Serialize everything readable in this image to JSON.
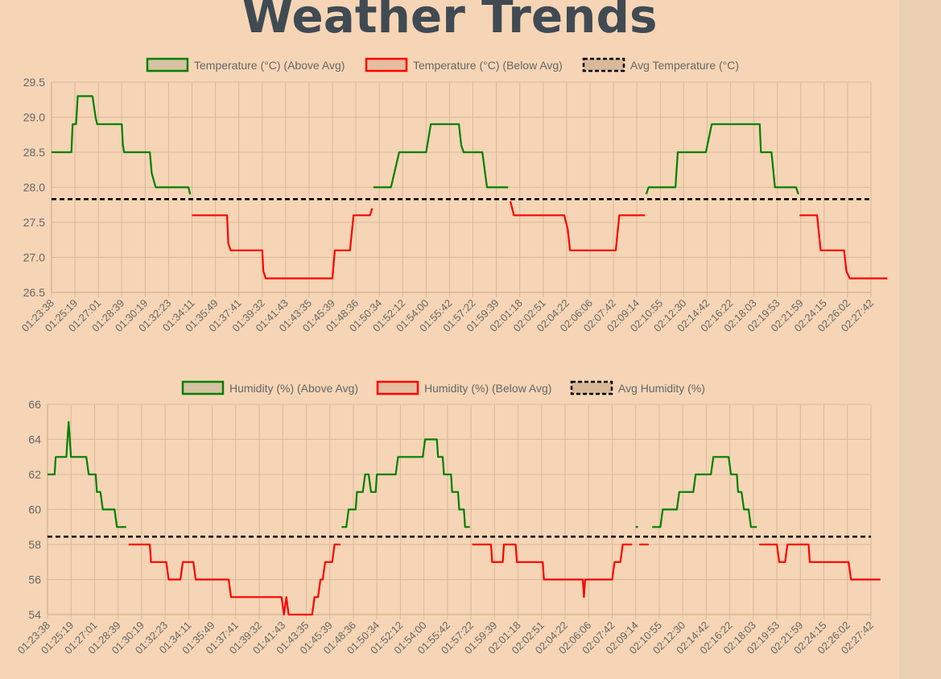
{
  "page": {
    "title": "Weather Trends"
  },
  "colors": {
    "above": "#008000",
    "below": "#ff0000",
    "avg": "#000000",
    "grid": "#d9b99a",
    "text": "#666666",
    "background": "#f5d5b5"
  },
  "chart_data": [
    {
      "type": "line",
      "ylim": [
        26.5,
        29.5
      ],
      "yticks": [
        26.5,
        27.0,
        27.5,
        28.0,
        28.5,
        29.0,
        29.5
      ],
      "tick_labels": [
        "01:23:38",
        "01:25:19",
        "01:27:01",
        "01:28:39",
        "01:30:19",
        "01:32:23",
        "01:34:11",
        "01:35:49",
        "01:37:41",
        "01:39:32",
        "01:41:43",
        "01:43:35",
        "01:45:39",
        "01:48:36",
        "01:50:34",
        "01:52:12",
        "01:54:00",
        "01:55:42",
        "01:57:22",
        "01:59:39",
        "02:01:18",
        "02:02:51",
        "02:04:22",
        "02:06:06",
        "02:07:42",
        "02:09:14",
        "02:10:55",
        "02:12:30",
        "02:14:42",
        "02:16:22",
        "02:18:03",
        "02:19:53",
        "02:21:59",
        "02:24:15",
        "02:26:02",
        "02:27:42"
      ],
      "legend": [
        {
          "label": "Temperature (°C) (Above Avg)",
          "color": "#008000",
          "style": "solid"
        },
        {
          "label": "Temperature (°C) (Below Avg)",
          "color": "#ff0000",
          "style": "solid"
        },
        {
          "label": "Avg Temperature (°C)",
          "color": "#000000",
          "style": "dashed"
        }
      ],
      "average": 27.83,
      "series": [
        {
          "type": "above",
          "points": [
            [
              0,
              28.5
            ],
            [
              0.85,
              28.5
            ],
            [
              0.9,
              28.9
            ],
            [
              1.05,
              28.9
            ],
            [
              1.12,
              29.3
            ],
            [
              1.75,
              29.3
            ],
            [
              1.88,
              29.0
            ],
            [
              1.95,
              28.9
            ],
            [
              3.0,
              28.9
            ],
            [
              3.05,
              28.6
            ],
            [
              3.1,
              28.5
            ],
            [
              4.2,
              28.5
            ],
            [
              4.28,
              28.2
            ],
            [
              4.45,
              28.0
            ],
            [
              5.85,
              28.0
            ],
            [
              5.92,
              27.9
            ]
          ]
        },
        {
          "type": "below",
          "points": [
            [
              6.0,
              27.6
            ],
            [
              7.5,
              27.6
            ],
            [
              7.55,
              27.2
            ],
            [
              7.65,
              27.1
            ],
            [
              9.0,
              27.1
            ],
            [
              9.05,
              26.8
            ],
            [
              9.15,
              26.7
            ],
            [
              12.0,
              26.7
            ],
            [
              12.1,
              27.1
            ],
            [
              12.75,
              27.1
            ],
            [
              12.9,
              27.6
            ],
            [
              13.6,
              27.6
            ],
            [
              13.7,
              27.7
            ]
          ]
        },
        {
          "type": "above",
          "points": [
            [
              13.75,
              28.0
            ],
            [
              14.5,
              28.0
            ],
            [
              14.85,
              28.5
            ],
            [
              16.0,
              28.5
            ],
            [
              16.2,
              28.9
            ],
            [
              17.4,
              28.9
            ],
            [
              17.5,
              28.6
            ],
            [
              17.6,
              28.5
            ],
            [
              18.4,
              28.5
            ],
            [
              18.6,
              28.0
            ],
            [
              19.5,
              28.0
            ]
          ]
        },
        {
          "type": "below",
          "points": [
            [
              19.6,
              27.8
            ],
            [
              19.75,
              27.6
            ],
            [
              21.9,
              27.6
            ],
            [
              22.05,
              27.4
            ],
            [
              22.15,
              27.1
            ],
            [
              24.1,
              27.1
            ],
            [
              24.25,
              27.6
            ],
            [
              25.35,
              27.6
            ]
          ]
        },
        {
          "type": "above",
          "points": [
            [
              25.4,
              27.9
            ],
            [
              25.5,
              28.0
            ],
            [
              26.65,
              28.0
            ],
            [
              26.75,
              28.5
            ],
            [
              27.95,
              28.5
            ],
            [
              28.2,
              28.9
            ],
            [
              30.25,
              28.9
            ],
            [
              30.3,
              28.5
            ],
            [
              30.75,
              28.5
            ],
            [
              30.9,
              28.0
            ],
            [
              31.8,
              28.0
            ],
            [
              31.9,
              27.9
            ]
          ]
        },
        {
          "type": "below",
          "points": [
            [
              31.95,
              27.6
            ],
            [
              32.7,
              27.6
            ],
            [
              32.85,
              27.1
            ],
            [
              33.85,
              27.1
            ],
            [
              33.95,
              26.8
            ],
            [
              34.1,
              26.7
            ],
            [
              35.7,
              26.7
            ]
          ]
        }
      ]
    },
    {
      "type": "line",
      "ylim": [
        54,
        66
      ],
      "yticks": [
        54,
        56,
        58,
        60,
        62,
        64,
        66
      ],
      "tick_labels": [
        "01:23:38",
        "01:25:19",
        "01:27:01",
        "01:28:39",
        "01:30:19",
        "01:32:23",
        "01:34:11",
        "01:35:49",
        "01:37:41",
        "01:39:32",
        "01:41:43",
        "01:43:35",
        "01:45:39",
        "01:48:36",
        "01:50:34",
        "01:52:12",
        "01:54:00",
        "01:55:42",
        "01:57:22",
        "01:59:39",
        "02:01:18",
        "02:02:51",
        "02:04:22",
        "02:06:06",
        "02:07:42",
        "02:09:14",
        "02:10:55",
        "02:12:30",
        "02:14:42",
        "02:16:22",
        "02:18:03",
        "02:19:53",
        "02:21:59",
        "02:24:15",
        "02:26:02",
        "02:27:42"
      ],
      "legend": [
        {
          "label": "Humidity (%) (Above Avg)",
          "color": "#008000",
          "style": "solid"
        },
        {
          "label": "Humidity (%) (Below Avg)",
          "color": "#ff0000",
          "style": "solid"
        },
        {
          "label": "Avg Humidity (%)",
          "color": "#000000",
          "style": "dashed"
        }
      ],
      "average": 58.45,
      "series": [
        {
          "type": "above",
          "points": [
            [
              0,
              62
            ],
            [
              0.3,
              62
            ],
            [
              0.35,
              63
            ],
            [
              0.8,
              63
            ],
            [
              0.9,
              65
            ],
            [
              1.0,
              63
            ],
            [
              1.65,
              63
            ],
            [
              1.75,
              62
            ],
            [
              2.05,
              62
            ],
            [
              2.1,
              61
            ],
            [
              2.25,
              61
            ],
            [
              2.35,
              60
            ],
            [
              2.85,
              60
            ],
            [
              2.95,
              59
            ],
            [
              3.35,
              59
            ]
          ]
        },
        {
          "type": "below",
          "points": [
            [
              3.45,
              58
            ],
            [
              4.35,
              58
            ],
            [
              4.4,
              57
            ],
            [
              5.05,
              57
            ],
            [
              5.15,
              56
            ],
            [
              5.65,
              56
            ],
            [
              5.75,
              57
            ],
            [
              6.2,
              57
            ],
            [
              6.3,
              56
            ],
            [
              7.7,
              56
            ],
            [
              7.8,
              55
            ],
            [
              9.95,
              55
            ],
            [
              10.05,
              54
            ],
            [
              10.15,
              55
            ],
            [
              10.25,
              54
            ],
            [
              11.25,
              54
            ],
            [
              11.35,
              55
            ],
            [
              11.5,
              55
            ],
            [
              11.6,
              56
            ],
            [
              11.7,
              56
            ],
            [
              11.8,
              57
            ],
            [
              12.1,
              57
            ],
            [
              12.2,
              58
            ],
            [
              12.45,
              58
            ]
          ]
        },
        {
          "type": "above",
          "points": [
            [
              12.5,
              59
            ],
            [
              12.7,
              59
            ],
            [
              12.8,
              60
            ],
            [
              13.1,
              60
            ],
            [
              13.15,
              61
            ],
            [
              13.4,
              61
            ],
            [
              13.5,
              62
            ],
            [
              13.65,
              62
            ],
            [
              13.75,
              61
            ],
            [
              13.95,
              61
            ],
            [
              14.0,
              62
            ],
            [
              14.8,
              62
            ],
            [
              14.9,
              63
            ],
            [
              15.95,
              63
            ],
            [
              16.05,
              64
            ],
            [
              16.55,
              64
            ],
            [
              16.6,
              63
            ],
            [
              16.8,
              63
            ],
            [
              16.85,
              62
            ],
            [
              17.15,
              62
            ],
            [
              17.2,
              61
            ],
            [
              17.45,
              61
            ],
            [
              17.5,
              60
            ],
            [
              17.7,
              60
            ],
            [
              17.75,
              59
            ],
            [
              17.95,
              59
            ]
          ]
        },
        {
          "type": "below",
          "points": [
            [
              18.05,
              58
            ],
            [
              18.85,
              58
            ],
            [
              18.9,
              57
            ],
            [
              19.35,
              57
            ],
            [
              19.4,
              58
            ],
            [
              19.9,
              58
            ],
            [
              19.95,
              57
            ],
            [
              21.05,
              57
            ],
            [
              21.1,
              56
            ],
            [
              22.75,
              56
            ],
            [
              22.8,
              55
            ],
            [
              22.85,
              56
            ],
            [
              24.0,
              56
            ],
            [
              24.1,
              57
            ],
            [
              24.35,
              57
            ],
            [
              24.45,
              58
            ],
            [
              24.85,
              58
            ]
          ]
        },
        {
          "type": "above",
          "points": [
            [
              25.0,
              59
            ],
            [
              25.1,
              59
            ]
          ]
        },
        {
          "type": "below",
          "points": [
            [
              25.15,
              58
            ],
            [
              25.55,
              58
            ]
          ]
        },
        {
          "type": "above",
          "points": [
            [
              25.7,
              59
            ],
            [
              26.05,
              59
            ],
            [
              26.15,
              60
            ],
            [
              26.75,
              60
            ],
            [
              26.85,
              61
            ],
            [
              27.45,
              61
            ],
            [
              27.55,
              62
            ],
            [
              28.2,
              62
            ],
            [
              28.3,
              63
            ],
            [
              28.95,
              63
            ],
            [
              29.05,
              62
            ],
            [
              29.3,
              62
            ],
            [
              29.35,
              61
            ],
            [
              29.5,
              61
            ],
            [
              29.6,
              60
            ],
            [
              29.8,
              60
            ],
            [
              29.9,
              59
            ],
            [
              30.15,
              59
            ]
          ]
        },
        {
          "type": "below",
          "points": [
            [
              30.25,
              58
            ],
            [
              31.0,
              58
            ],
            [
              31.1,
              57
            ],
            [
              31.35,
              57
            ],
            [
              31.45,
              58
            ],
            [
              32.35,
              58
            ],
            [
              32.4,
              57
            ],
            [
              34.05,
              57
            ],
            [
              34.15,
              56
            ],
            [
              35.4,
              56
            ]
          ]
        }
      ]
    }
  ]
}
